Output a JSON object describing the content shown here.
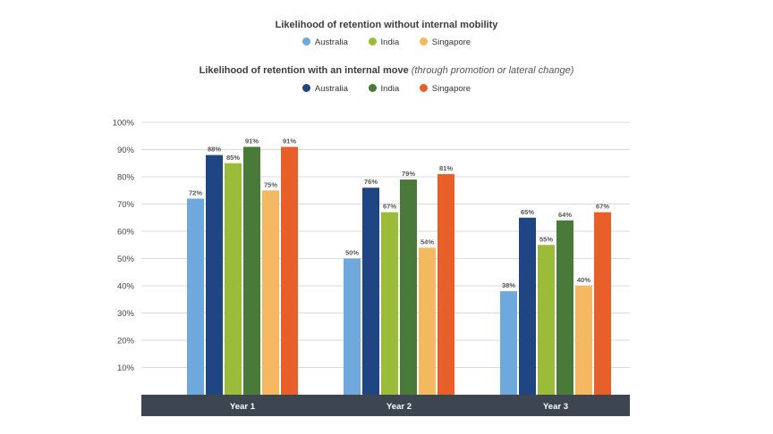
{
  "legend_top": {
    "title": "Likelihood of retention without internal mobility",
    "items": [
      {
        "label": "Australia",
        "color": "#6fa8dc"
      },
      {
        "label": "India",
        "color": "#9bbb3b"
      },
      {
        "label": "Singapore",
        "color": "#f4b860"
      }
    ]
  },
  "legend_bottom": {
    "title": "Likelihood of retention with an internal move",
    "title_note": "(through promotion or lateral change)",
    "items": [
      {
        "label": "Australia",
        "color": "#1f4582"
      },
      {
        "label": "India",
        "color": "#4a7a3a"
      },
      {
        "label": "Singapore",
        "color": "#e85f2a"
      }
    ]
  },
  "chart_data": {
    "type": "bar",
    "categories": [
      "Year 1",
      "Year 2",
      "Year 3"
    ],
    "ylim": [
      0,
      100
    ],
    "y_ticks": [
      "10%",
      "20%",
      "30%",
      "40%",
      "50%",
      "60%",
      "70%",
      "80%",
      "90%",
      "100%"
    ],
    "grid": true,
    "series": [
      {
        "name": "Australia",
        "group": "without internal mobility",
        "color": "#6fa8dc",
        "values": [
          72,
          50,
          38
        ],
        "labels": [
          "72%",
          "50%",
          "38%"
        ]
      },
      {
        "name": "Australia",
        "group": "with an internal move",
        "color": "#1f4582",
        "values": [
          88,
          76,
          65
        ],
        "labels": [
          "88%",
          "76%",
          "65%"
        ]
      },
      {
        "name": "India",
        "group": "without internal mobility",
        "color": "#9bbb3b",
        "values": [
          85,
          67,
          55
        ],
        "labels": [
          "85%",
          "67%",
          "55%"
        ]
      },
      {
        "name": "India",
        "group": "with an internal move",
        "color": "#4a7a3a",
        "values": [
          91,
          79,
          64
        ],
        "labels": [
          "91%",
          "79%",
          "64%"
        ]
      },
      {
        "name": "Singapore",
        "group": "without internal mobility",
        "color": "#f4b860",
        "values": [
          75,
          54,
          40
        ],
        "labels": [
          "75%",
          "54%",
          "40%"
        ]
      },
      {
        "name": "Singapore",
        "group": "with an internal move",
        "color": "#e85f2a",
        "values": [
          91,
          81,
          67
        ],
        "labels": [
          "91%",
          "81%",
          "67%"
        ]
      }
    ]
  }
}
